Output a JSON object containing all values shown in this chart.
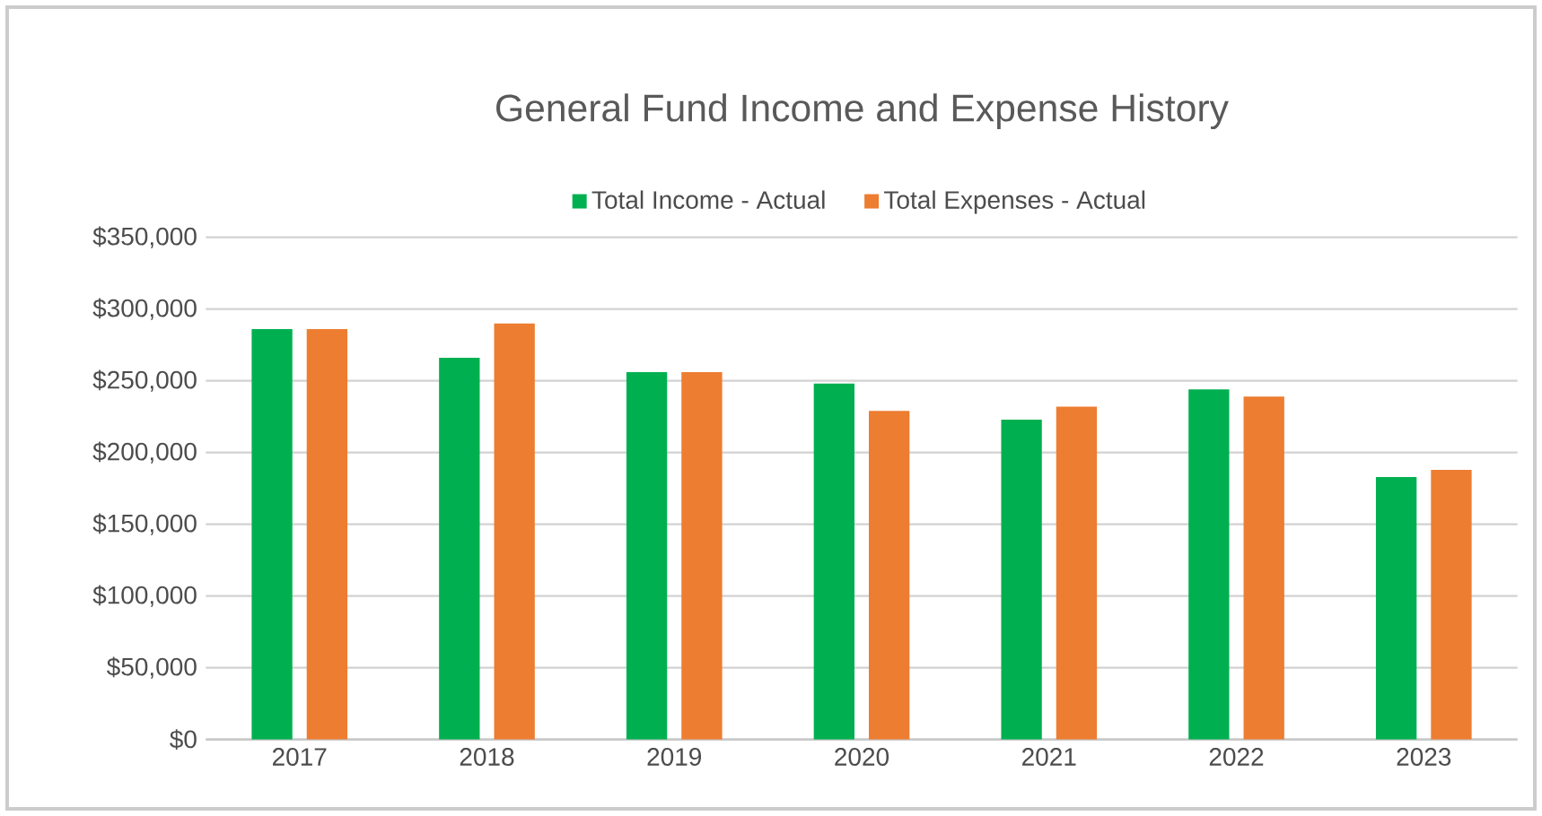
{
  "chart_data": {
    "type": "bar",
    "title": "General Fund Income and Expense History",
    "categories": [
      "2017",
      "2018",
      "2019",
      "2020",
      "2021",
      "2022",
      "2023"
    ],
    "series": [
      {
        "name": "Total Income - Actual",
        "color": "#00b050",
        "values": [
          286000,
          266000,
          256000,
          248000,
          223000,
          244000,
          183000
        ]
      },
      {
        "name": "Total Expenses - Actual",
        "color": "#ed7d31",
        "values": [
          286000,
          290000,
          256000,
          229000,
          232000,
          239000,
          188000
        ]
      }
    ],
    "ylim": [
      0,
      350000
    ],
    "yticks": [
      {
        "value": 0,
        "label": "$0"
      },
      {
        "value": 50000,
        "label": "$50,000"
      },
      {
        "value": 100000,
        "label": "$100,000"
      },
      {
        "value": 150000,
        "label": "$150,000"
      },
      {
        "value": 200000,
        "label": "$200,000"
      },
      {
        "value": 250000,
        "label": "$250,000"
      },
      {
        "value": 300000,
        "label": "$300,000"
      },
      {
        "value": 350000,
        "label": "$350,000"
      }
    ],
    "grid": "y",
    "legend": "top"
  }
}
